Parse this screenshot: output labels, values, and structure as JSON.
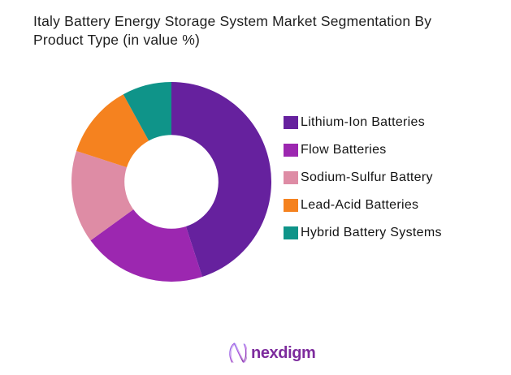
{
  "title": {
    "line1": "Italy Battery Energy Storage System Market Segmentation By",
    "line2": "Product Type (in value %)"
  },
  "chart_data": {
    "type": "pie",
    "donut": true,
    "inner_radius_ratio": 0.47,
    "title": "Italy Battery Energy Storage System Market Segmentation By Product Type (in value %)",
    "unit": "value %",
    "legend_position": "right",
    "start_angle_deg": 0,
    "direction": "clockwise",
    "data_labels": "none",
    "series": [
      {
        "name": "Lithium-Ion Batteries",
        "value": 45,
        "color": "#66219E"
      },
      {
        "name": "Flow Batteries",
        "value": 20,
        "color": "#9C27B0"
      },
      {
        "name": "Sodium-Sulfur Battery",
        "value": 15,
        "color": "#DE8CA5"
      },
      {
        "name": "Lead-Acid Batteries",
        "value": 12,
        "color": "#F5821F"
      },
      {
        "name": "Hybrid Battery Systems",
        "value": 8,
        "color": "#0F9489"
      }
    ]
  },
  "footer": {
    "brand": "nexdigm",
    "brand_color": "#7d2b9d",
    "logo_icon": "nexdigm-n-monogram"
  }
}
